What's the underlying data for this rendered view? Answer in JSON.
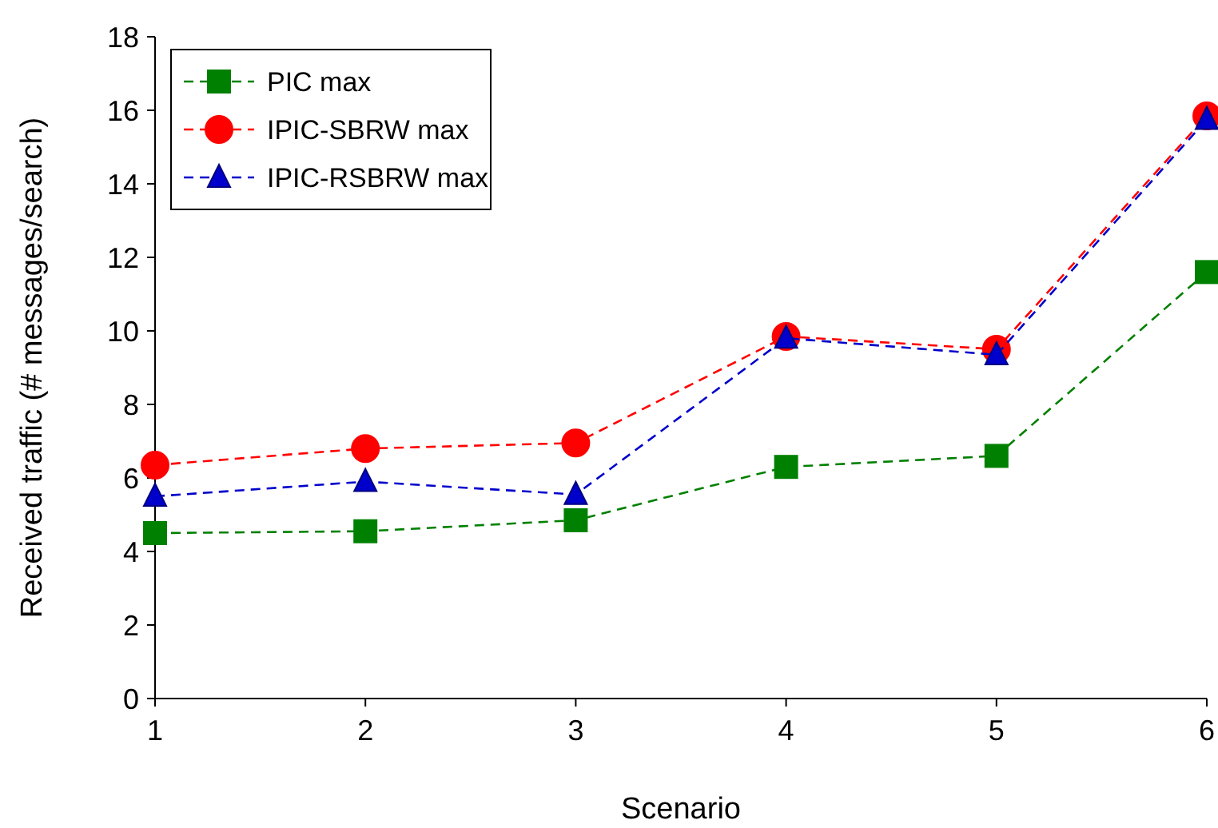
{
  "chart_data": {
    "type": "line",
    "xlabel": "Scenario",
    "ylabel": "Received traffic (# messages/search)",
    "x": [
      1,
      2,
      3,
      4,
      5,
      6
    ],
    "xlim": [
      1,
      6
    ],
    "xticks": [
      1,
      2,
      3,
      4,
      5,
      6
    ],
    "ylim": [
      0,
      18
    ],
    "yticks": [
      0,
      2,
      4,
      6,
      8,
      10,
      12,
      14,
      16,
      18
    ],
    "grid": false,
    "legend": "top left",
    "line_style": "dashed",
    "series": [
      {
        "name": "PIC max",
        "color": "#008000",
        "marker": "square",
        "values": [
          4.5,
          4.55,
          4.85,
          6.3,
          6.6,
          11.6
        ]
      },
      {
        "name": "IPIC-SBRW max",
        "color": "#ff0000",
        "marker": "circle",
        "values": [
          6.35,
          6.8,
          6.95,
          9.85,
          9.5,
          15.85
        ]
      },
      {
        "name": "IPIC-RSBRW max",
        "color": "#0000cc",
        "marker": "triangle",
        "values": [
          5.5,
          5.9,
          5.55,
          9.8,
          9.35,
          15.75
        ]
      }
    ]
  }
}
